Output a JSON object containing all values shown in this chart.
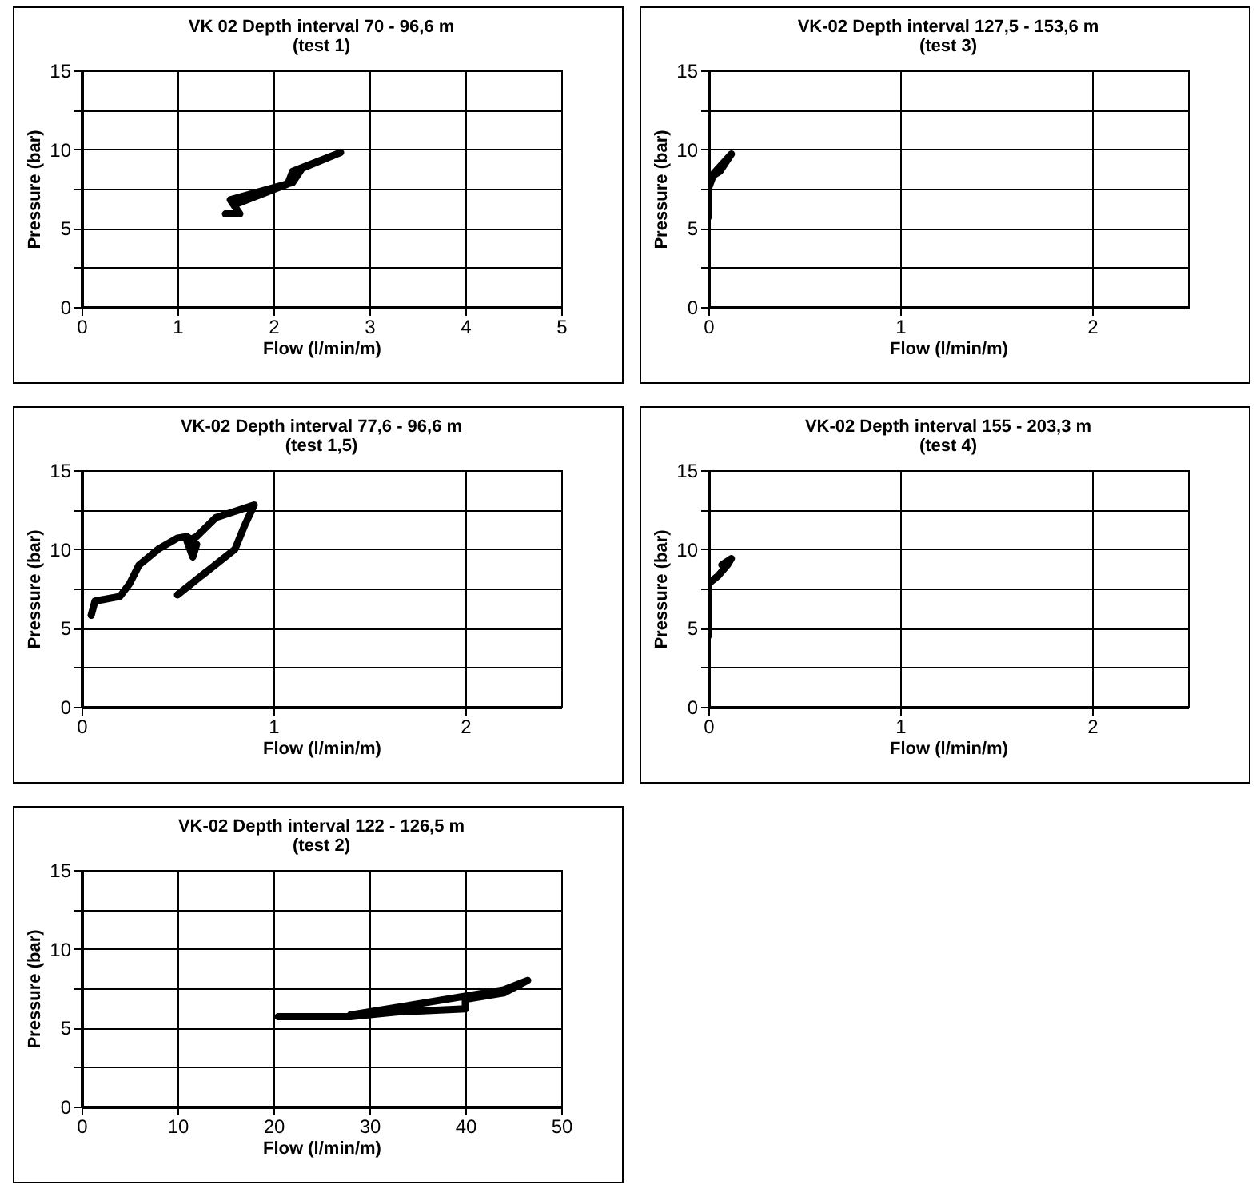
{
  "chart_data": [
    {
      "type": "line",
      "title": "VK 02 Depth interval 70 - 96,6 m",
      "subtitle": "(test 1)",
      "xlabel": "Flow (l/min/m)",
      "ylabel": "Pressure (bar)",
      "xlim": [
        0,
        5
      ],
      "xticks": [
        0,
        1,
        2,
        3,
        4,
        5
      ],
      "ylim": [
        0,
        15
      ],
      "yticks": [
        0,
        {
          "value": 2.5,
          "label": null
        },
        5,
        {
          "value": 7.5,
          "label": null
        },
        10,
        {
          "value": 12.5,
          "label": null
        },
        15
      ],
      "grid": true,
      "series": [
        {
          "color": "#000000",
          "x": [
            1.5,
            1.65,
            1.55,
            1.9,
            2.2,
            2.3,
            2.7,
            2.2,
            2.15,
            1.6
          ],
          "values": [
            5.9,
            5.9,
            6.8,
            7.4,
            7.9,
            8.8,
            9.8,
            8.6,
            7.8,
            6.5
          ]
        }
      ]
    },
    {
      "type": "line",
      "title": "VK-02 Depth interval 127,5 - 153,6 m",
      "subtitle": "(test 3)",
      "xlabel": "Flow (l/min/m)",
      "ylabel": "Pressure (bar)",
      "xlim": [
        0,
        2.5
      ],
      "xticks": [
        0,
        1,
        2
      ],
      "ylim": [
        0,
        15
      ],
      "yticks": [
        0,
        {
          "value": 2.5,
          "label": null
        },
        5,
        {
          "value": 7.5,
          "label": null
        },
        10,
        {
          "value": 12.5,
          "label": null
        },
        15
      ],
      "grid": true,
      "series": [
        {
          "color": "#000000",
          "x": [
            0,
            0,
            0.02,
            0.06,
            0.12,
            0.03,
            0
          ],
          "values": [
            5.7,
            7.8,
            8.3,
            8.6,
            9.7,
            8.5,
            7.5
          ]
        }
      ]
    },
    {
      "type": "line",
      "title": "VK-02 Depth interval 77,6 - 96,6 m",
      "subtitle": "(test 1,5)",
      "xlabel": "Flow (l/min/m)",
      "ylabel": "Pressure (bar)",
      "xlim": [
        0,
        2.5
      ],
      "xticks": [
        0,
        1,
        2
      ],
      "ylim": [
        0,
        15
      ],
      "yticks": [
        0,
        {
          "value": 2.5,
          "label": null
        },
        5,
        {
          "value": 7.5,
          "label": null
        },
        10,
        {
          "value": 12.5,
          "label": null
        },
        15
      ],
      "grid": true,
      "series": [
        {
          "color": "#000000",
          "x": [
            0.05,
            0.07,
            0.2,
            0.25,
            0.3,
            0.4,
            0.5,
            0.55,
            0.6,
            0.58,
            0.55,
            0.6,
            0.7,
            0.9,
            0.85,
            0.8,
            0.5
          ],
          "values": [
            5.8,
            6.7,
            7.0,
            7.8,
            9.0,
            10.0,
            10.7,
            10.8,
            10.3,
            9.5,
            10.5,
            10.8,
            12.0,
            12.8,
            11.5,
            10.0,
            7.1
          ]
        }
      ]
    },
    {
      "type": "line",
      "title": "VK-02 Depth interval 155 - 203,3 m",
      "subtitle": "(test 4)",
      "xlabel": "Flow (l/min/m)",
      "ylabel": "Pressure (bar)",
      "xlim": [
        0,
        2.5
      ],
      "xticks": [
        0,
        1,
        2
      ],
      "ylim": [
        0,
        15
      ],
      "yticks": [
        0,
        {
          "value": 2.5,
          "label": null
        },
        5,
        {
          "value": 7.5,
          "label": null
        },
        10,
        {
          "value": 12.5,
          "label": null
        },
        15
      ],
      "grid": true,
      "series": [
        {
          "color": "#000000",
          "x": [
            0,
            0,
            0.05,
            0.1,
            0.12,
            0.07
          ],
          "values": [
            4.5,
            7.8,
            8.3,
            9.0,
            9.4,
            9.0
          ]
        }
      ]
    },
    {
      "type": "line",
      "title": "VK-02 Depth interval 122 - 126,5 m",
      "subtitle": "(test 2)",
      "xlabel": "Flow (l/min/m)",
      "ylabel": "Pressure (bar)",
      "xlim": [
        0,
        50
      ],
      "xticks": [
        0,
        10,
        20,
        30,
        40,
        50
      ],
      "ylim": [
        0,
        15
      ],
      "yticks": [
        0,
        {
          "value": 2.5,
          "label": null
        },
        5,
        {
          "value": 7.5,
          "label": null
        },
        10,
        {
          "value": 12.5,
          "label": null
        },
        15
      ],
      "grid": true,
      "series": [
        {
          "color": "#000000",
          "x": [
            20.5,
            28,
            33,
            40,
            40,
            44,
            46.5,
            44,
            33,
            28
          ],
          "values": [
            5.7,
            5.7,
            6.0,
            6.2,
            6.8,
            7.2,
            8.0,
            7.4,
            6.3,
            5.8
          ]
        }
      ]
    }
  ]
}
